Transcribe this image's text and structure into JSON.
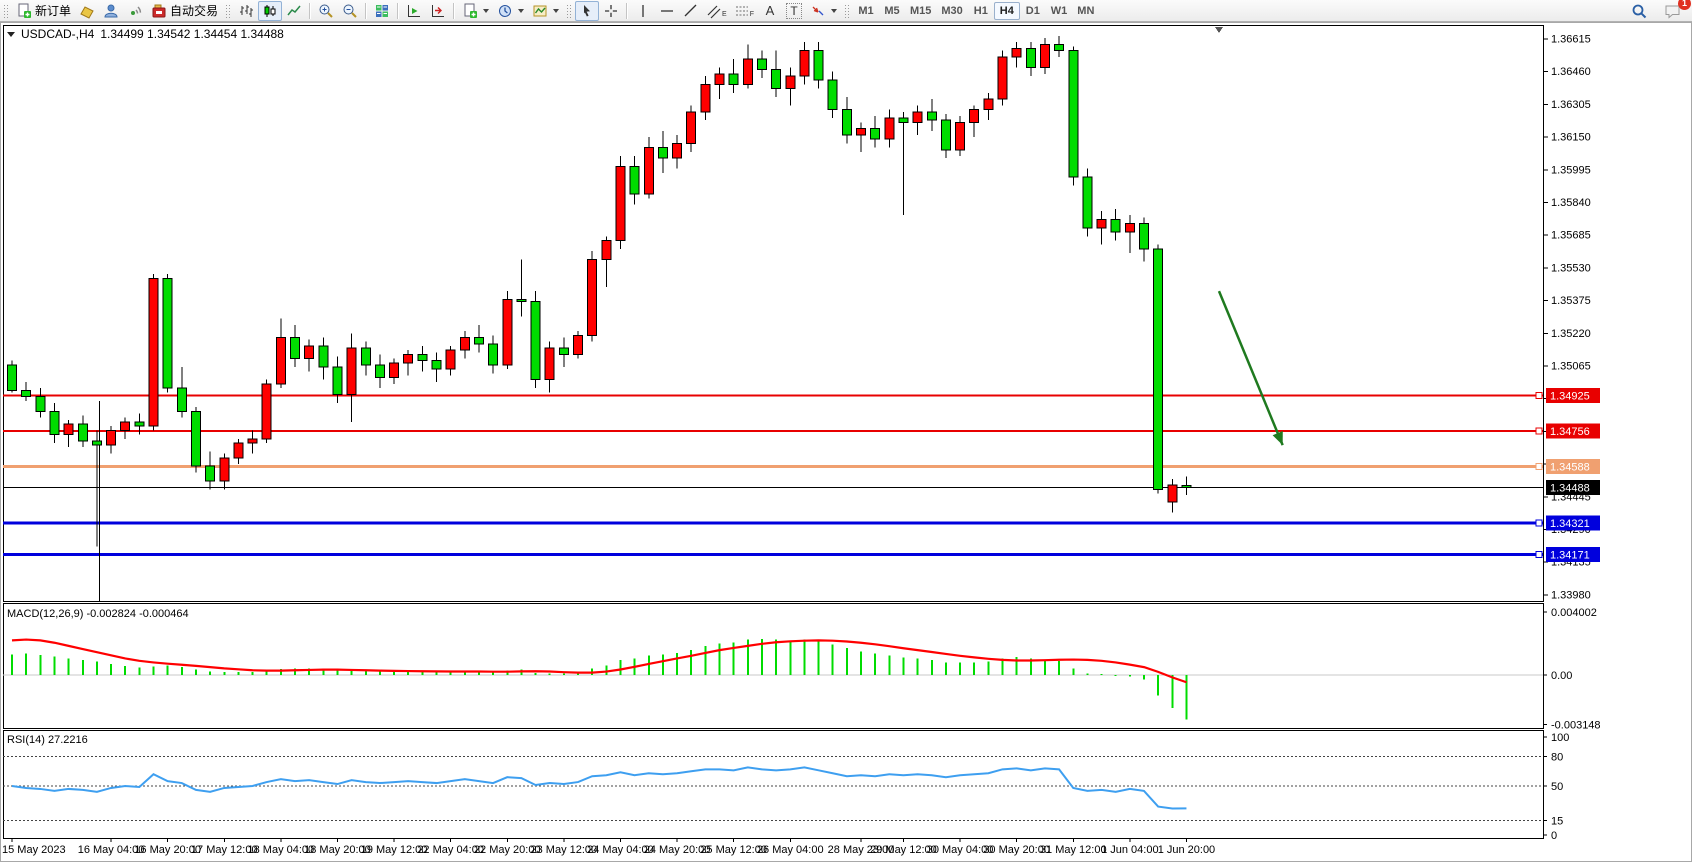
{
  "toolbar": {
    "new_order_label": "新订单",
    "algo_trading_label": "自动交易",
    "text_tool_glyph": "A",
    "label_tool_glyph": "T",
    "channel_tool_sub": "E",
    "fibo_tool_sub": "F",
    "timeframes": [
      "M1",
      "M5",
      "M15",
      "M30",
      "H1",
      "H4",
      "D1",
      "W1",
      "MN"
    ],
    "active_timeframe": "H4",
    "notification_count": "1"
  },
  "chart": {
    "symbol_label": "USDCAD-,H4",
    "quote_ohlc": "1.34499 1.34542 1.34454 1.34488",
    "macd_label": "MACD(12,26,9) -0.002824 -0.000464",
    "rsi_label": "RSI(14) 27.2216"
  },
  "chart_data": {
    "type": "candlestick+indicators",
    "symbol": "USDCAD-",
    "timeframe": "H4",
    "colors": {
      "bull": "#FF0000",
      "bear": "#00DD00",
      "outline": "#000000",
      "macd_hist": "#00DC00",
      "macd_signal": "#FF0000",
      "rsi_line": "#3E9FF0",
      "red_level": "#E80000",
      "orange_level": "#F0A070",
      "blue_level": "#0000DD",
      "arrow": "#1F7A1F"
    },
    "scale": {
      "price_top": 1.36615,
      "price_step": 0.00155,
      "price_ticks": 18,
      "macd_max": 0.004002,
      "macd_min": -0.003148,
      "rsi_max": 100,
      "rsi_min": 0
    },
    "price_axis_ticks": [
      "1.36615",
      "1.36460",
      "1.36305",
      "1.36150",
      "1.35995",
      "1.35840",
      "1.35685",
      "1.35530",
      "1.35375",
      "1.35220",
      "1.35065",
      "1.34910",
      "1.34755",
      "1.34600",
      "1.34445",
      "1.34290",
      "1.34135",
      "1.33980"
    ],
    "macd_axis_ticks": [
      "0.004002",
      "0.00",
      "-0.003148"
    ],
    "rsi_axis_ticks": [
      "100",
      "80",
      "50",
      "15",
      "0"
    ],
    "rsi_levels": [
      80,
      50,
      15
    ],
    "time_axis_labels": [
      {
        "text": "15 May 2023",
        "bar": 0
      },
      {
        "text": "16 May 04:00",
        "bar": 7
      },
      {
        "text": "16 May 20:00",
        "bar": 11
      },
      {
        "text": "17 May 12:00",
        "bar": 15
      },
      {
        "text": "18 May 04:00",
        "bar": 19
      },
      {
        "text": "18 May 20:00",
        "bar": 23
      },
      {
        "text": "19 May 12:00",
        "bar": 27
      },
      {
        "text": "22 May 04:00",
        "bar": 31
      },
      {
        "text": "22 May 20:00",
        "bar": 35
      },
      {
        "text": "23 May 12:00",
        "bar": 39
      },
      {
        "text": "24 May 04:00",
        "bar": 43
      },
      {
        "text": "24 May 20:00",
        "bar": 47
      },
      {
        "text": "25 May 12:00",
        "bar": 51
      },
      {
        "text": "26 May 04:00",
        "bar": 55
      },
      {
        "text": "28 May 23:00",
        "bar": 60
      },
      {
        "text": "29 May 12:00",
        "bar": 63
      },
      {
        "text": "30 May 04:00",
        "bar": 67
      },
      {
        "text": "30 May 20:00",
        "bar": 71
      },
      {
        "text": "31 May 12:00",
        "bar": 75
      },
      {
        "text": "1 Jun 04:00",
        "bar": 79
      },
      {
        "text": "1 Jun 20:00",
        "bar": 83
      }
    ],
    "candles": [
      [
        1.3507,
        1.3509,
        1.3494,
        1.3495
      ],
      [
        1.3495,
        1.3499,
        1.349,
        1.3492
      ],
      [
        1.3492,
        1.3496,
        1.3482,
        1.3485
      ],
      [
        1.3485,
        1.3489,
        1.347,
        1.3474
      ],
      [
        1.3474,
        1.3481,
        1.3468,
        1.3479
      ],
      [
        1.3479,
        1.3483,
        1.3468,
        1.3471
      ],
      [
        1.3471,
        1.3476,
        1.3421,
        1.3469
      ],
      [
        1.3469,
        1.3478,
        1.3465,
        1.3476
      ],
      [
        1.3476,
        1.3482,
        1.3472,
        1.348
      ],
      [
        1.348,
        1.3484,
        1.3474,
        1.3478
      ],
      [
        1.3478,
        1.355,
        1.3476,
        1.3548
      ],
      [
        1.3548,
        1.355,
        1.3494,
        1.3496
      ],
      [
        1.3496,
        1.3506,
        1.3482,
        1.3485
      ],
      [
        1.3485,
        1.3487,
        1.3456,
        1.3459
      ],
      [
        1.3459,
        1.3466,
        1.3448,
        1.3452
      ],
      [
        1.3452,
        1.3465,
        1.3448,
        1.3463
      ],
      [
        1.3463,
        1.3472,
        1.346,
        1.347
      ],
      [
        1.347,
        1.3476,
        1.3465,
        1.3472
      ],
      [
        1.3472,
        1.35,
        1.347,
        1.3498
      ],
      [
        1.3498,
        1.3529,
        1.3496,
        1.352
      ],
      [
        1.352,
        1.3526,
        1.3506,
        1.351
      ],
      [
        1.351,
        1.3519,
        1.3504,
        1.3516
      ],
      [
        1.3516,
        1.352,
        1.35,
        1.3506
      ],
      [
        1.3506,
        1.3511,
        1.3489,
        1.3493
      ],
      [
        1.3493,
        1.3522,
        1.348,
        1.3515
      ],
      [
        1.3515,
        1.3518,
        1.3502,
        1.3507
      ],
      [
        1.3507,
        1.3512,
        1.3496,
        1.3501
      ],
      [
        1.3501,
        1.351,
        1.3498,
        1.3508
      ],
      [
        1.3508,
        1.3514,
        1.3502,
        1.3512
      ],
      [
        1.3512,
        1.3516,
        1.3504,
        1.3509
      ],
      [
        1.3509,
        1.3513,
        1.3499,
        1.3505
      ],
      [
        1.3505,
        1.3516,
        1.3502,
        1.3514
      ],
      [
        1.3514,
        1.3523,
        1.351,
        1.352
      ],
      [
        1.352,
        1.3526,
        1.3513,
        1.3517
      ],
      [
        1.3517,
        1.3521,
        1.3503,
        1.3507
      ],
      [
        1.3507,
        1.3542,
        1.3505,
        1.3538
      ],
      [
        1.3538,
        1.3557,
        1.353,
        1.3537
      ],
      [
        1.3537,
        1.3542,
        1.3496,
        1.35
      ],
      [
        1.35,
        1.3518,
        1.3494,
        1.3515
      ],
      [
        1.3515,
        1.352,
        1.3506,
        1.3512
      ],
      [
        1.3512,
        1.3523,
        1.351,
        1.3521
      ],
      [
        1.3521,
        1.3561,
        1.3518,
        1.3557
      ],
      [
        1.3557,
        1.3568,
        1.3544,
        1.3566
      ],
      [
        1.3566,
        1.3606,
        1.3562,
        1.3601
      ],
      [
        1.3601,
        1.3606,
        1.3583,
        1.3588
      ],
      [
        1.3588,
        1.3615,
        1.3586,
        1.361
      ],
      [
        1.361,
        1.3618,
        1.3598,
        1.3605
      ],
      [
        1.3605,
        1.3616,
        1.36,
        1.3612
      ],
      [
        1.3612,
        1.363,
        1.3608,
        1.3627
      ],
      [
        1.3627,
        1.3644,
        1.3623,
        1.364
      ],
      [
        1.364,
        1.3648,
        1.3633,
        1.3645
      ],
      [
        1.3645,
        1.3652,
        1.3636,
        1.364
      ],
      [
        1.364,
        1.3659,
        1.3638,
        1.3652
      ],
      [
        1.3652,
        1.3656,
        1.3643,
        1.3647
      ],
      [
        1.3647,
        1.3656,
        1.3634,
        1.3638
      ],
      [
        1.3638,
        1.3648,
        1.363,
        1.3644
      ],
      [
        1.3644,
        1.366,
        1.364,
        1.3656
      ],
      [
        1.3656,
        1.366,
        1.3638,
        1.3642
      ],
      [
        1.3642,
        1.3646,
        1.3624,
        1.3628
      ],
      [
        1.3628,
        1.3634,
        1.3612,
        1.3616
      ],
      [
        1.3616,
        1.3622,
        1.3608,
        1.3619
      ],
      [
        1.3619,
        1.3625,
        1.361,
        1.3614
      ],
      [
        1.3614,
        1.3628,
        1.361,
        1.3624
      ],
      [
        1.3624,
        1.3627,
        1.3578,
        1.3622
      ],
      [
        1.3622,
        1.363,
        1.3616,
        1.3627
      ],
      [
        1.3627,
        1.3633,
        1.3618,
        1.3623
      ],
      [
        1.3623,
        1.3626,
        1.3605,
        1.3609
      ],
      [
        1.3609,
        1.3625,
        1.3606,
        1.3622
      ],
      [
        1.3622,
        1.363,
        1.3615,
        1.3628
      ],
      [
        1.3628,
        1.3636,
        1.3623,
        1.3633
      ],
      [
        1.3633,
        1.3656,
        1.363,
        1.3653
      ],
      [
        1.3653,
        1.366,
        1.3648,
        1.3657
      ],
      [
        1.3657,
        1.366,
        1.3644,
        1.3648
      ],
      [
        1.3648,
        1.3662,
        1.3645,
        1.3659
      ],
      [
        1.3659,
        1.3663,
        1.3653,
        1.3656
      ],
      [
        1.3656,
        1.3658,
        1.3592,
        1.3596
      ],
      [
        1.3596,
        1.36,
        1.3568,
        1.3572
      ],
      [
        1.3572,
        1.358,
        1.3564,
        1.3576
      ],
      [
        1.3576,
        1.3581,
        1.3566,
        1.357
      ],
      [
        1.357,
        1.3578,
        1.356,
        1.3574
      ],
      [
        1.3574,
        1.3577,
        1.3556,
        1.3562
      ],
      [
        1.3562,
        1.3564,
        1.3446,
        1.3448
      ],
      [
        1.3442,
        1.3453,
        1.3437,
        1.345
      ],
      [
        1.34499,
        1.34542,
        1.34454,
        1.34488
      ]
    ],
    "hlines": [
      {
        "price": 1.34925,
        "label": "1.34925",
        "color": "#E80000",
        "width": 2
      },
      {
        "price": 1.34756,
        "label": "1.34756",
        "color": "#E80000",
        "width": 2
      },
      {
        "price": 1.34588,
        "label": "1.34588",
        "color": "#F0A070",
        "width": 3
      },
      {
        "price": 1.34321,
        "label": "1.34321",
        "color": "#0000DD",
        "width": 3
      },
      {
        "price": 1.34171,
        "label": "1.34171",
        "color": "#0000DD",
        "width": 3
      }
    ],
    "current_price": {
      "value": 1.34488,
      "label": "1.34488",
      "color": "#000000"
    },
    "macd": {
      "histogram": [
        0.0013,
        0.00135,
        0.00128,
        0.00118,
        0.00105,
        0.00095,
        0.00085,
        0.0007,
        0.00058,
        0.00048,
        0.00055,
        0.0006,
        0.0005,
        0.00035,
        0.00022,
        0.00018,
        0.00018,
        0.0002,
        0.00028,
        0.00038,
        0.00042,
        0.0004,
        0.00036,
        0.00028,
        0.0003,
        0.00028,
        0.00024,
        0.00022,
        0.00024,
        0.00022,
        0.00018,
        0.0002,
        0.00026,
        0.00024,
        0.00016,
        0.0003,
        0.00034,
        0.00014,
        0.0001,
        8e-05,
        0.00012,
        0.0004,
        0.0006,
        0.00095,
        0.00105,
        0.00125,
        0.0013,
        0.0014,
        0.0016,
        0.00185,
        0.002,
        0.00205,
        0.00225,
        0.0023,
        0.00225,
        0.0022,
        0.00225,
        0.00215,
        0.00195,
        0.0017,
        0.0015,
        0.00135,
        0.00125,
        0.0011,
        0.00105,
        0.00095,
        0.0008,
        0.0008,
        0.0008,
        0.00085,
        0.00105,
        0.00115,
        0.00105,
        0.001,
        0.0009,
        0.0004,
        0.0001,
        5e-05,
        -5e-05,
        -0.0001,
        -0.0003,
        -0.0013,
        -0.0021,
        -0.00282
      ],
      "signal": [
        0.0022,
        0.00225,
        0.0022,
        0.00205,
        0.00185,
        0.00165,
        0.00145,
        0.00125,
        0.00105,
        0.0009,
        0.0008,
        0.00072,
        0.00065,
        0.00058,
        0.0005,
        0.00042,
        0.00036,
        0.0003,
        0.00028,
        0.00028,
        0.0003,
        0.00032,
        0.00034,
        0.00034,
        0.00032,
        0.0003,
        0.00028,
        0.00026,
        0.00025,
        0.00024,
        0.00023,
        0.00022,
        0.00022,
        0.00022,
        0.00021,
        0.00021,
        0.00023,
        0.00024,
        0.00022,
        0.00018,
        0.00015,
        0.00015,
        0.00022,
        0.00035,
        0.00052,
        0.0007,
        0.00088,
        0.00105,
        0.00122,
        0.0014,
        0.00158,
        0.00172,
        0.00185,
        0.00198,
        0.00208,
        0.00214,
        0.00218,
        0.0022,
        0.00218,
        0.00213,
        0.00205,
        0.00195,
        0.00183,
        0.0017,
        0.00158,
        0.00146,
        0.00134,
        0.00122,
        0.00112,
        0.00103,
        0.00096,
        0.00092,
        0.00092,
        0.00094,
        0.00097,
        0.00098,
        0.00096,
        0.0009,
        0.0008,
        0.00066,
        0.0005,
        0.0002,
        -0.00015,
        -0.00046
      ]
    },
    "rsi": {
      "values": [
        50,
        48,
        47,
        45,
        47,
        46,
        44,
        48,
        50,
        49,
        62,
        55,
        53,
        46,
        44,
        48,
        49,
        50,
        54,
        57,
        55,
        56,
        54,
        52,
        56,
        54,
        53,
        54,
        55,
        54,
        53,
        55,
        57,
        55,
        53,
        59,
        58,
        51,
        53,
        52,
        54,
        60,
        61,
        64,
        61,
        63,
        62,
        63,
        65,
        67,
        67,
        66,
        69,
        67,
        66,
        67,
        69,
        66,
        63,
        60,
        61,
        60,
        62,
        61,
        62,
        61,
        59,
        61,
        62,
        63,
        67,
        68,
        66,
        68,
        67,
        48,
        45,
        46,
        44,
        47,
        45,
        29,
        27,
        27.2
      ]
    },
    "annotations": {
      "arrow": {
        "from_bar": 85.3,
        "from_price": 1.3542,
        "to_bar": 89.8,
        "to_price": 1.3469,
        "color": "#1F7A1F",
        "width": 2.5
      },
      "vline_segment": {
        "bar": 6.2,
        "top_price": 1.349
      },
      "shift_marker_bar": 85.3
    }
  }
}
